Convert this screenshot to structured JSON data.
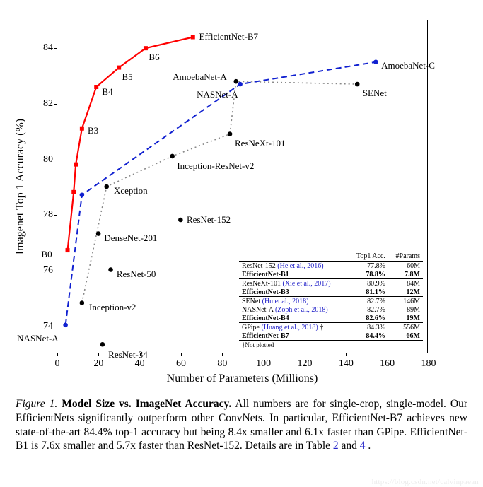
{
  "chart": {
    "type": "scatter+line",
    "xlim": [
      0,
      180
    ],
    "ylim": [
      73,
      85
    ],
    "xticks": [
      0,
      20,
      40,
      60,
      80,
      100,
      120,
      140,
      160,
      180
    ],
    "yticks": [
      74,
      76,
      78,
      80,
      82,
      84
    ],
    "xlabel": "Number of Parameters (Millions)",
    "ylabel": "Imagenet Top 1 Accuracy (%)",
    "border_color": "#000000",
    "background_color": "#ffffff",
    "series": {
      "efficientnet": {
        "color": "#ff0000",
        "line_width": 2.2,
        "dash": "none",
        "marker": "square",
        "marker_size": 6,
        "points": [
          {
            "x": 5,
            "y": 76.7,
            "label": "B0",
            "dx": -20,
            "dy": 4
          },
          {
            "x": 8,
            "y": 78.8
          },
          {
            "x": 9,
            "y": 79.8
          },
          {
            "x": 12,
            "y": 81.1,
            "label": "B3",
            "dx": 8,
            "dy": 2
          },
          {
            "x": 19,
            "y": 82.6,
            "label": "B4",
            "dx": 8,
            "dy": 6
          },
          {
            "x": 30,
            "y": 83.3,
            "label": "B5",
            "dx": 4,
            "dy": 12
          },
          {
            "x": 43,
            "y": 84.0,
            "label": "B6",
            "dx": 4,
            "dy": 12
          },
          {
            "x": 66,
            "y": 84.4,
            "label": "EfficientNet-B7",
            "dx": 8,
            "dy": -2
          }
        ]
      },
      "blue": {
        "color": "#1020d0",
        "line_width": 2,
        "dash": "8 5",
        "marker": "circle",
        "marker_size": 5,
        "points": [
          {
            "x": 4,
            "y": 74.0,
            "label": "NASNet-A",
            "dx": -8,
            "dy": 16
          },
          {
            "x": 12,
            "y": 78.7
          },
          {
            "x": 89,
            "y": 82.7,
            "label": "NASNet-A",
            "dx": -2,
            "dy": 14
          },
          {
            "x": 155,
            "y": 83.5,
            "label": "AmoebaNet-C",
            "dx": 6,
            "dy": 4
          }
        ]
      },
      "gray": {
        "color": "#888888",
        "line_width": 1.6,
        "dash": "2 4",
        "marker": "circle",
        "marker_size": 5,
        "marker_color": "#000000",
        "points": [
          {
            "x": 12,
            "y": 74.8,
            "label": "Inception-v2",
            "dx": 10,
            "dy": 4
          },
          {
            "x": 24,
            "y": 79.0,
            "label": "Xception",
            "dx": 10,
            "dy": 4
          },
          {
            "x": 56,
            "y": 80.1,
            "label": "Inception-ResNet-v2",
            "dx": 6,
            "dy": 12
          },
          {
            "x": 84,
            "y": 80.9,
            "label": "ResNeXt-101",
            "dx": 6,
            "dy": 12
          },
          {
            "x": 87,
            "y": 82.8,
            "label": "AmoebaNet-A",
            "dx": -12,
            "dy": -8
          },
          {
            "x": 146,
            "y": 82.7,
            "label": "SENet",
            "dx": 6,
            "dy": 12
          }
        ]
      },
      "black_points": {
        "color": "#000000",
        "marker": "circle",
        "marker_size": 5,
        "points": [
          {
            "x": 22,
            "y": 73.3,
            "label": "ResNet-34",
            "dx": 8,
            "dy": 12
          },
          {
            "x": 26,
            "y": 76.0,
            "label": "ResNet-50",
            "dx": 8,
            "dy": 4
          },
          {
            "x": 20,
            "y": 77.3,
            "label": "DenseNet-201",
            "dx": 8,
            "dy": 4
          },
          {
            "x": 60,
            "y": 77.8,
            "label": "ResNet-152",
            "dx": 8,
            "dy": -2
          }
        ]
      }
    }
  },
  "inset": {
    "header": [
      "",
      "Top1 Acc.",
      "#Params"
    ],
    "rows": [
      {
        "label": "ResNet-152",
        "cite": "(He et al., 2016)",
        "acc": "77.8%",
        "params": "60M",
        "sep": true
      },
      {
        "label": "EfficientNet-B1",
        "acc": "78.8%",
        "params": "7.8M",
        "bold": true
      },
      {
        "label": "ResNeXt-101",
        "cite": "(Xie et al., 2017)",
        "acc": "80.9%",
        "params": "84M",
        "sep": true
      },
      {
        "label": "EfficientNet-B3",
        "acc": "81.1%",
        "params": "12M",
        "bold": true
      },
      {
        "label": "SENet",
        "cite": "(Hu et al., 2018)",
        "acc": "82.7%",
        "params": "146M",
        "sep": true
      },
      {
        "label": "NASNet-A",
        "cite": "(Zoph et al., 2018)",
        "acc": "82.7%",
        "params": "89M"
      },
      {
        "label": "EfficientNet-B4",
        "acc": "82.6%",
        "params": "19M",
        "bold": true
      },
      {
        "label": "GPipe",
        "cite": "(Huang et al., 2018)",
        "dag": "†",
        "acc": "84.3%",
        "params": "556M",
        "sep": true
      },
      {
        "label": "EfficientNet-B7",
        "acc": "84.4%",
        "params": "66M",
        "bold": true
      }
    ],
    "footnote": "†Not plotted"
  },
  "caption": {
    "figlabel": "Figure 1.",
    "title": "Model Size vs. ImageNet Accuracy.",
    "body_a": "All numbers are for single-crop, single-model. Our EfficientNets significantly outperform other ConvNets. In particular, EfficientNet-B7 achieves new state-of-the-art 84.4% top-1 accuracy but being 8.4x smaller and 6.1x faster than GPipe. EfficientNet-B1 is 7.6x smaller and 5.7x faster than ResNet-152. Details are in Table ",
    "link1": "2",
    "mid": " and ",
    "link2": "4",
    "tail": "."
  },
  "watermark": "https://blog.csdn.net/calvinpaean"
}
